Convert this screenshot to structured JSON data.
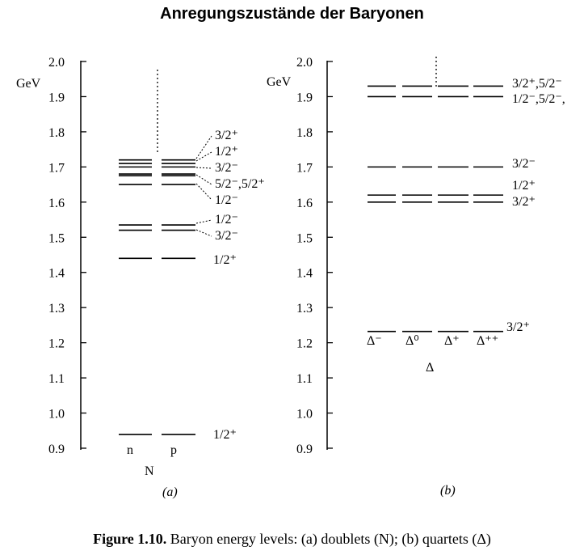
{
  "title": "Anregungszustände der Baryonen",
  "caption": {
    "bold": "Figure 1.10.",
    "text": "Baryon energy levels: (a) doublets (N); (b) quartets (Δ)"
  },
  "panels": [
    {
      "id": "a",
      "unit": "GeV",
      "ticks": [
        "2.0",
        "1.9",
        "1.8",
        "1.7",
        "1.6",
        "1.5",
        "1.4",
        "1.3",
        "1.2",
        "1.1",
        "1.0",
        "0.9"
      ],
      "columns": [
        "n",
        "p"
      ],
      "group": "N",
      "panel_label": "(a)",
      "levels": [
        0.939,
        1.44,
        1.52,
        1.535,
        1.65,
        1.675,
        1.68,
        1.7,
        1.71,
        1.72
      ],
      "labels": [
        "3/2⁺",
        "1/2⁺",
        "3/2⁻",
        "5/2⁻,5/2⁺",
        "1/2⁻",
        "1/2⁻",
        "3/2⁻",
        "1/2⁺",
        "1/2⁺"
      ]
    },
    {
      "id": "b",
      "unit": "GeV",
      "ticks": [
        "2.0",
        "1.9",
        "1.8",
        "1.7",
        "1.6",
        "1.5",
        "1.4",
        "1.3",
        "1.2",
        "1.1",
        "1.0",
        "0.9"
      ],
      "columns": [
        "Δ⁻",
        "Δ⁰",
        "Δ⁺",
        "Δ⁺⁺"
      ],
      "group": "Δ",
      "panel_label": "(b)",
      "levels": [
        1.232,
        1.6,
        1.62,
        1.7,
        1.9,
        1.93
      ],
      "labels": [
        "3/2⁺,5/2⁻",
        "1/2⁻,5/2⁻,",
        "3/2⁻",
        "1/2⁺",
        "3/2⁺",
        "3/2⁺"
      ]
    }
  ]
}
